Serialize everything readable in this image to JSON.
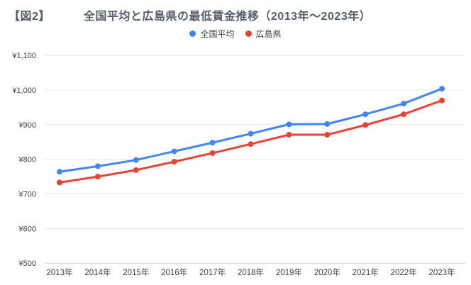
{
  "header": {
    "figure_label": "【図2】",
    "title": "全国平均と広島県の最低賃金推移（2013年〜2023年）"
  },
  "colors": {
    "background": "#ffffff",
    "title_text": "#555e68",
    "axis_text": "#3f3f3f",
    "legend_text": "#3c4043",
    "gridline": "#e8e8e8",
    "baseline": "#d9d9d9",
    "national_blue": "#4285f4",
    "hiroshima_red": "#ea4335"
  },
  "chart_data": {
    "type": "line",
    "title": "全国平均と広島県の最低賃金推移（2013年〜2023年）",
    "x": [
      "2013年",
      "2014年",
      "2015年",
      "2016年",
      "2017年",
      "2018年",
      "2019年",
      "2020年",
      "2021年",
      "2022年",
      "2023年"
    ],
    "series": [
      {
        "name": "全国平均",
        "color": "#4285f4",
        "values": [
          764,
          780,
          798,
          823,
          848,
          874,
          901,
          902,
          930,
          961,
          1004
        ]
      },
      {
        "name": "広島県",
        "color": "#ea4335",
        "values": [
          733,
          750,
          769,
          793,
          818,
          844,
          871,
          871,
          899,
          930,
          970
        ]
      }
    ],
    "ylim": [
      500,
      1100
    ],
    "yticks": [
      {
        "label": "¥500",
        "value": 500
      },
      {
        "label": "¥600",
        "value": 600
      },
      {
        "label": "¥700",
        "value": 700
      },
      {
        "label": "¥800",
        "value": 800
      },
      {
        "label": "¥900",
        "value": 900
      },
      {
        "label": "¥1,000",
        "value": 1000
      },
      {
        "label": "¥1,100",
        "value": 1100
      }
    ],
    "xlabel": "",
    "ylabel": "",
    "currency": "¥",
    "grid": "horizontal",
    "legend_position": "top",
    "marker": "circle"
  }
}
